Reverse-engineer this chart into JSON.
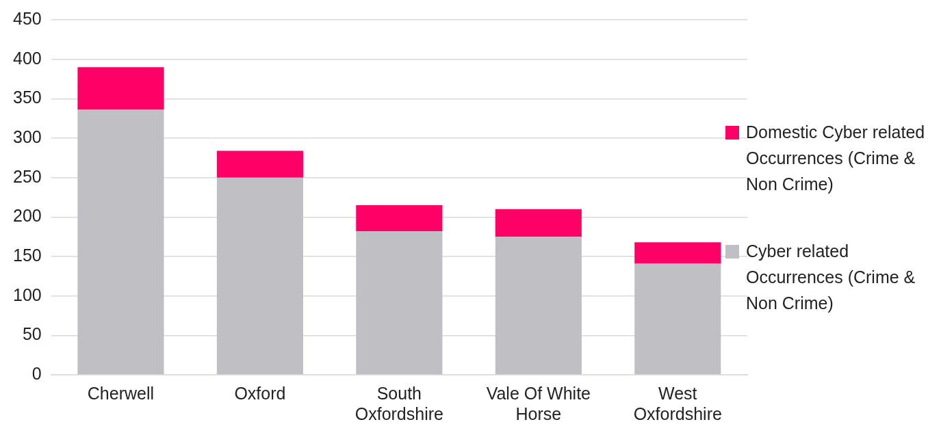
{
  "chart_data": {
    "type": "bar",
    "stacked": true,
    "categories": [
      "Cherwell",
      "Oxford",
      "South Oxfordshire",
      "Vale Of White Horse",
      "West Oxfordshire"
    ],
    "series": [
      {
        "name": "Cyber related Occurrences  (Crime & Non Crime)",
        "color": "#c0c0c4",
        "values": [
          336,
          250,
          182,
          175,
          141
        ]
      },
      {
        "name": "Domestic Cyber related Occurrences (Crime & Non Crime)",
        "color": "#ff0066",
        "values": [
          54,
          34,
          33,
          35,
          27
        ]
      }
    ],
    "ylim": [
      0,
      450
    ],
    "yticks": [
      0,
      50,
      100,
      150,
      200,
      250,
      300,
      350,
      400,
      450
    ],
    "grid": "y",
    "legend": "right"
  }
}
